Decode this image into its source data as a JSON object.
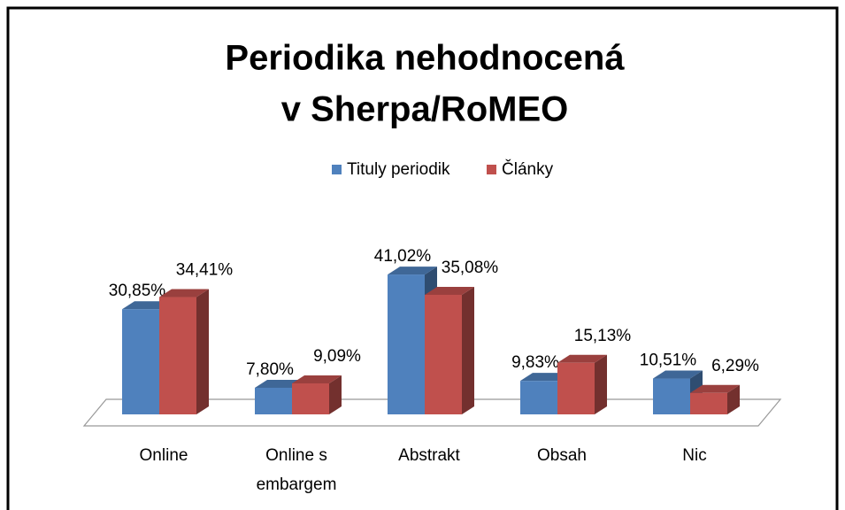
{
  "chart_data": {
    "type": "bar3d",
    "title": [
      "Periodika nehodnocená",
      "v Sherpa/RoMEO"
    ],
    "categories": [
      "Online",
      "Online s embargem",
      "Abstrakt",
      "Obsah",
      "Nic"
    ],
    "legend": "top",
    "series": [
      {
        "name": "Tituly periodik",
        "color": "#4f81bd",
        "values": [
          30.85,
          7.8,
          41.02,
          9.83,
          10.51
        ],
        "value_labels": [
          "30,85%",
          "7,80%",
          "41,02%",
          "9,83%",
          "10,51%"
        ]
      },
      {
        "name": "Články",
        "color": "#c0504d",
        "values": [
          34.41,
          9.09,
          35.08,
          15.13,
          6.29
        ],
        "value_labels": [
          "34,41%",
          "9,09%",
          "35,08%",
          "15,13%",
          "6,29%"
        ]
      }
    ]
  }
}
